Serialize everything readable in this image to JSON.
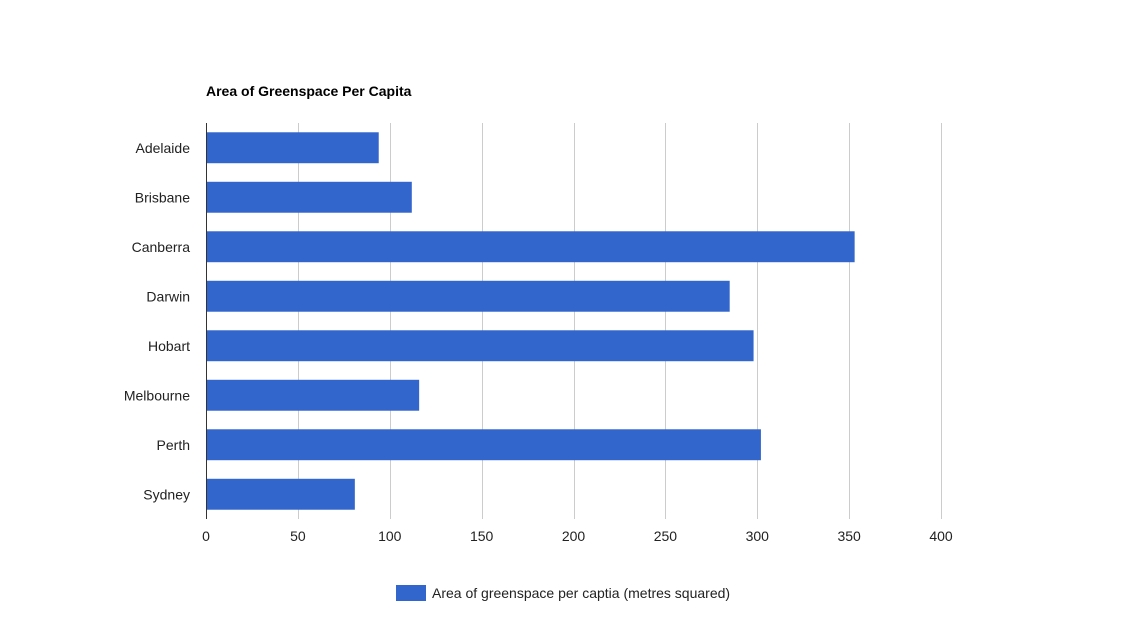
{
  "chart_data": {
    "type": "bar",
    "orientation": "horizontal",
    "title": "Area of Greenspace Per Capita",
    "categories": [
      "Adelaide",
      "Brisbane",
      "Canberra",
      "Darwin",
      "Hobart",
      "Melbourne",
      "Perth",
      "Sydney"
    ],
    "series": [
      {
        "name": "Area of greenspace per captia (metres squared)",
        "values": [
          94,
          112,
          353,
          285,
          298,
          116,
          302,
          81
        ],
        "color": "#3366cc"
      }
    ],
    "xlim": [
      0,
      400
    ],
    "x_ticks": [
      "0",
      "50",
      "100",
      "150",
      "200",
      "250",
      "300",
      "350",
      "400"
    ],
    "grid": true,
    "legend_position": "bottom"
  }
}
